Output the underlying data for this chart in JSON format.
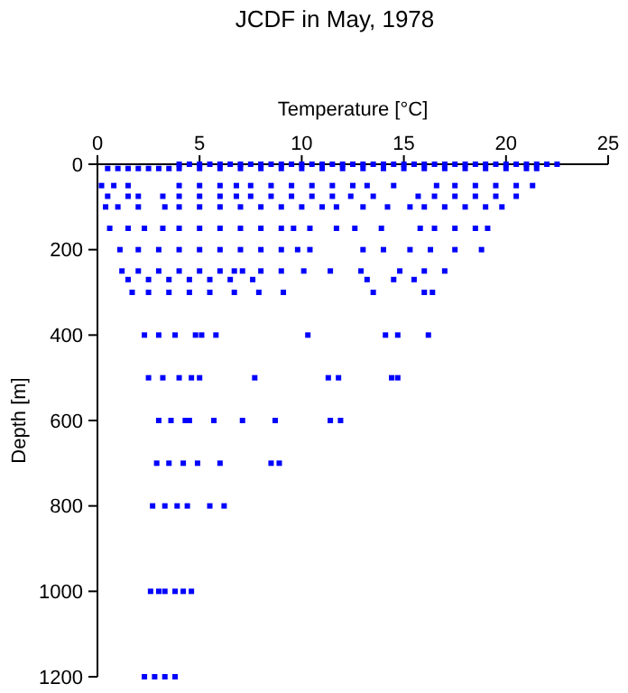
{
  "chart_data": {
    "type": "scatter",
    "title": "JCDF in May, 1978",
    "xlabel": "Temperature [°C]",
    "ylabel": "Depth [m]",
    "xlim": [
      0,
      25
    ],
    "xticks": [
      0,
      5,
      10,
      15,
      20,
      25
    ],
    "ylim": [
      1200,
      0
    ],
    "yticks": [
      0,
      200,
      400,
      600,
      800,
      1000,
      1200
    ],
    "marker": "square",
    "series": [
      {
        "color": "#0000ff",
        "x": [
          4,
          4.5,
          5,
          5.5,
          6,
          6.5,
          7,
          7.5,
          8,
          8.5,
          9,
          9.5,
          10,
          10.5,
          11,
          11.5,
          12,
          12.5,
          13,
          13.5,
          14,
          14.5,
          15,
          15.5,
          16,
          16.5,
          17,
          17.5,
          18,
          18.5,
          19,
          19.5,
          20,
          20.5,
          21,
          21.5,
          22,
          22.5,
          0.5,
          1,
          1.5,
          2,
          2.5,
          3,
          3.5,
          4,
          5,
          6,
          7,
          8,
          9,
          10,
          11,
          12,
          13,
          14,
          15,
          16,
          17,
          18,
          19,
          20,
          21,
          21.5,
          0.2,
          0.8,
          1.5,
          4,
          5,
          6,
          6.8,
          7.5,
          8.5,
          9.5,
          10.5,
          11.5,
          12.5,
          13.2,
          14.5,
          16.6,
          17.5,
          18.5,
          19.5,
          20.5,
          21.3,
          0.5,
          1.5,
          2,
          3.2,
          4,
          5,
          6,
          6.8,
          7.5,
          8.5,
          9.5,
          10.5,
          11.5,
          12.4,
          13.5,
          15.7,
          16.5,
          17.5,
          18.5,
          19.5,
          20.5,
          0.4,
          1,
          2,
          3.3,
          4,
          5,
          6,
          7,
          8,
          9,
          10,
          11,
          11.7,
          13,
          14.2,
          15.3,
          16,
          17,
          18,
          19,
          19.8,
          0.6,
          1.5,
          2.3,
          3.2,
          4,
          5,
          6,
          7,
          8,
          9,
          9.6,
          10.4,
          11.7,
          12.6,
          13.9,
          15.8,
          16.5,
          17.5,
          18.5,
          19.1,
          1.1,
          2,
          3,
          4,
          5,
          6,
          7,
          8,
          9,
          9.8,
          10.4,
          13,
          14,
          15.3,
          16.3,
          17.5,
          18.8,
          1.2,
          2,
          3,
          4,
          5,
          6,
          6.7,
          7.1,
          8,
          9,
          10.1,
          11.4,
          12.9,
          14.8,
          16,
          17,
          1.5,
          2.5,
          3.5,
          4.5,
          5.5,
          6.5,
          7.6,
          13.2,
          14.5,
          15.5,
          1.7,
          2.5,
          3.5,
          4.5,
          5.5,
          6.7,
          7.9,
          9.1,
          13.5,
          16,
          16.4,
          2.3,
          3,
          3.8,
          4.8,
          5.1,
          5.8,
          10.3,
          14.1,
          14.7,
          16.2,
          2.5,
          3.2,
          4,
          4.6,
          5,
          7.7,
          11.3,
          11.8,
          14.4,
          14.7,
          3,
          3.6,
          4.3,
          4.5,
          5.7,
          7.1,
          8.7,
          11.4,
          11.9,
          2.9,
          3.5,
          4.2,
          4.9,
          6,
          8.5,
          8.9,
          2.7,
          3.3,
          3.9,
          4.4,
          5.5,
          6.2,
          2.6,
          3,
          3.3,
          3.8,
          4.2,
          4.6,
          2.3,
          2.8,
          3.3,
          3.8
        ],
        "values": [
          0,
          0,
          0,
          0,
          0,
          0,
          0,
          0,
          0,
          0,
          0,
          0,
          0,
          0,
          0,
          0,
          0,
          0,
          0,
          0,
          0,
          0,
          0,
          0,
          0,
          0,
          0,
          0,
          0,
          0,
          0,
          0,
          0,
          0,
          0,
          0,
          0,
          0,
          10,
          10,
          10,
          10,
          10,
          10,
          10,
          10,
          10,
          10,
          10,
          10,
          10,
          10,
          10,
          10,
          10,
          10,
          10,
          10,
          10,
          10,
          10,
          10,
          10,
          10,
          50,
          50,
          50,
          50,
          50,
          50,
          50,
          50,
          50,
          50,
          50,
          50,
          50,
          50,
          50,
          50,
          50,
          50,
          50,
          50,
          50,
          75,
          75,
          75,
          75,
          75,
          75,
          75,
          75,
          75,
          75,
          75,
          75,
          75,
          75,
          75,
          75,
          75,
          75,
          75,
          75,
          75,
          100,
          100,
          100,
          100,
          100,
          100,
          100,
          100,
          100,
          100,
          100,
          100,
          100,
          100,
          100,
          100,
          100,
          100,
          100,
          100,
          100,
          150,
          150,
          150,
          150,
          150,
          150,
          150,
          150,
          150,
          150,
          150,
          150,
          150,
          150,
          150,
          150,
          150,
          150,
          150,
          150,
          200,
          200,
          200,
          200,
          200,
          200,
          200,
          200,
          200,
          200,
          200,
          200,
          200,
          200,
          200,
          200,
          200,
          250,
          250,
          250,
          250,
          250,
          250,
          250,
          250,
          250,
          250,
          250,
          250,
          250,
          250,
          250,
          250,
          270,
          270,
          270,
          270,
          270,
          270,
          270,
          270,
          270,
          270,
          300,
          300,
          300,
          300,
          300,
          300,
          300,
          300,
          300,
          300,
          300,
          400,
          400,
          400,
          400,
          400,
          400,
          400,
          400,
          400,
          400,
          500,
          500,
          500,
          500,
          500,
          500,
          500,
          500,
          500,
          500,
          600,
          600,
          600,
          600,
          600,
          600,
          600,
          600,
          600,
          700,
          700,
          700,
          700,
          700,
          700,
          700,
          800,
          800,
          800,
          800,
          800,
          800,
          1000,
          1000,
          1000,
          1000,
          1000,
          1000,
          1200,
          1200,
          1200,
          1200
        ]
      }
    ]
  }
}
